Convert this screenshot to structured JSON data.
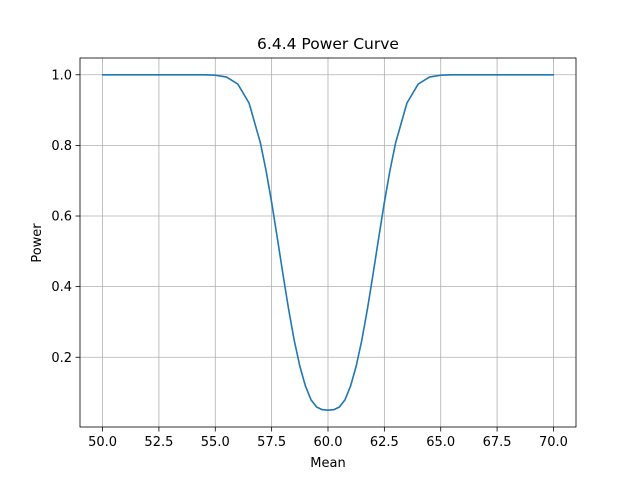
{
  "chart_data": {
    "type": "line",
    "title": "6.4.4 Power Curve",
    "xlabel": "Mean",
    "ylabel": "Power",
    "xlim": [
      49.0,
      71.0
    ],
    "ylim": [
      0.0025,
      1.0475
    ],
    "grid": true,
    "x_ticks": [
      50.0,
      52.5,
      55.0,
      57.5,
      60.0,
      62.5,
      65.0,
      67.5,
      70.0
    ],
    "x_tick_labels": [
      "50.0",
      "52.5",
      "55.0",
      "57.5",
      "60.0",
      "62.5",
      "65.0",
      "67.5",
      "70.0"
    ],
    "y_ticks": [
      0.2,
      0.4,
      0.6,
      0.8,
      1.0
    ],
    "y_tick_labels": [
      "0.2",
      "0.4",
      "0.6",
      "0.8",
      "1.0"
    ],
    "series": [
      {
        "color": "#1f77b4",
        "x": [
          50.0,
          51.0,
          52.0,
          53.0,
          54.0,
          54.5,
          55.0,
          55.5,
          56.0,
          56.5,
          57.0,
          57.25,
          57.5,
          57.75,
          58.0,
          58.25,
          58.5,
          58.75,
          59.0,
          59.25,
          59.5,
          59.75,
          60.0,
          60.25,
          60.5,
          60.75,
          61.0,
          61.25,
          61.5,
          61.75,
          62.0,
          62.25,
          62.5,
          62.75,
          63.0,
          63.5,
          64.0,
          64.5,
          65.0,
          65.5,
          66.0,
          67.0,
          68.0,
          69.0,
          70.0
        ],
        "values": [
          1.0,
          1.0,
          1.0,
          1.0,
          1.0,
          1.0,
          0.9988,
          0.9935,
          0.9736,
          0.9197,
          0.8074,
          0.7296,
          0.6387,
          0.5388,
          0.4359,
          0.337,
          0.2485,
          0.1749,
          0.1183,
          0.0791,
          0.0588,
          0.0514,
          0.05,
          0.0514,
          0.0588,
          0.0791,
          0.1183,
          0.1749,
          0.2485,
          0.337,
          0.4359,
          0.5388,
          0.6387,
          0.7296,
          0.8074,
          0.9197,
          0.9736,
          0.9935,
          0.9988,
          1.0,
          1.0,
          1.0,
          1.0,
          1.0,
          1.0
        ]
      }
    ]
  }
}
